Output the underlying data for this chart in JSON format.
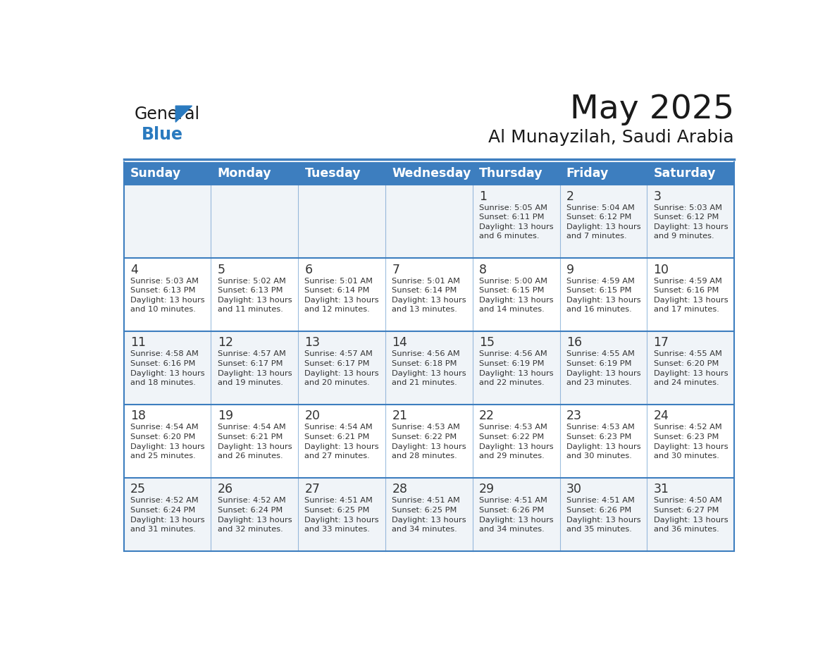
{
  "title": "May 2025",
  "subtitle": "Al Munayzilah, Saudi Arabia",
  "days_of_week": [
    "Sunday",
    "Monday",
    "Tuesday",
    "Wednesday",
    "Thursday",
    "Friday",
    "Saturday"
  ],
  "header_bg": "#3d7ebf",
  "header_text": "#ffffff",
  "row_bg_even": "#f0f4f8",
  "row_bg_odd": "#ffffff",
  "border_color": "#3d7ebf",
  "day_number_color": "#333333",
  "cell_text_color": "#333333",
  "logo_general_color": "#1a1a1a",
  "logo_blue_color": "#2a7abf",
  "calendar_data": [
    [
      {
        "day": null,
        "info": null
      },
      {
        "day": null,
        "info": null
      },
      {
        "day": null,
        "info": null
      },
      {
        "day": null,
        "info": null
      },
      {
        "day": 1,
        "info": "Sunrise: 5:05 AM\nSunset: 6:11 PM\nDaylight: 13 hours\nand 6 minutes."
      },
      {
        "day": 2,
        "info": "Sunrise: 5:04 AM\nSunset: 6:12 PM\nDaylight: 13 hours\nand 7 minutes."
      },
      {
        "day": 3,
        "info": "Sunrise: 5:03 AM\nSunset: 6:12 PM\nDaylight: 13 hours\nand 9 minutes."
      }
    ],
    [
      {
        "day": 4,
        "info": "Sunrise: 5:03 AM\nSunset: 6:13 PM\nDaylight: 13 hours\nand 10 minutes."
      },
      {
        "day": 5,
        "info": "Sunrise: 5:02 AM\nSunset: 6:13 PM\nDaylight: 13 hours\nand 11 minutes."
      },
      {
        "day": 6,
        "info": "Sunrise: 5:01 AM\nSunset: 6:14 PM\nDaylight: 13 hours\nand 12 minutes."
      },
      {
        "day": 7,
        "info": "Sunrise: 5:01 AM\nSunset: 6:14 PM\nDaylight: 13 hours\nand 13 minutes."
      },
      {
        "day": 8,
        "info": "Sunrise: 5:00 AM\nSunset: 6:15 PM\nDaylight: 13 hours\nand 14 minutes."
      },
      {
        "day": 9,
        "info": "Sunrise: 4:59 AM\nSunset: 6:15 PM\nDaylight: 13 hours\nand 16 minutes."
      },
      {
        "day": 10,
        "info": "Sunrise: 4:59 AM\nSunset: 6:16 PM\nDaylight: 13 hours\nand 17 minutes."
      }
    ],
    [
      {
        "day": 11,
        "info": "Sunrise: 4:58 AM\nSunset: 6:16 PM\nDaylight: 13 hours\nand 18 minutes."
      },
      {
        "day": 12,
        "info": "Sunrise: 4:57 AM\nSunset: 6:17 PM\nDaylight: 13 hours\nand 19 minutes."
      },
      {
        "day": 13,
        "info": "Sunrise: 4:57 AM\nSunset: 6:17 PM\nDaylight: 13 hours\nand 20 minutes."
      },
      {
        "day": 14,
        "info": "Sunrise: 4:56 AM\nSunset: 6:18 PM\nDaylight: 13 hours\nand 21 minutes."
      },
      {
        "day": 15,
        "info": "Sunrise: 4:56 AM\nSunset: 6:19 PM\nDaylight: 13 hours\nand 22 minutes."
      },
      {
        "day": 16,
        "info": "Sunrise: 4:55 AM\nSunset: 6:19 PM\nDaylight: 13 hours\nand 23 minutes."
      },
      {
        "day": 17,
        "info": "Sunrise: 4:55 AM\nSunset: 6:20 PM\nDaylight: 13 hours\nand 24 minutes."
      }
    ],
    [
      {
        "day": 18,
        "info": "Sunrise: 4:54 AM\nSunset: 6:20 PM\nDaylight: 13 hours\nand 25 minutes."
      },
      {
        "day": 19,
        "info": "Sunrise: 4:54 AM\nSunset: 6:21 PM\nDaylight: 13 hours\nand 26 minutes."
      },
      {
        "day": 20,
        "info": "Sunrise: 4:54 AM\nSunset: 6:21 PM\nDaylight: 13 hours\nand 27 minutes."
      },
      {
        "day": 21,
        "info": "Sunrise: 4:53 AM\nSunset: 6:22 PM\nDaylight: 13 hours\nand 28 minutes."
      },
      {
        "day": 22,
        "info": "Sunrise: 4:53 AM\nSunset: 6:22 PM\nDaylight: 13 hours\nand 29 minutes."
      },
      {
        "day": 23,
        "info": "Sunrise: 4:53 AM\nSunset: 6:23 PM\nDaylight: 13 hours\nand 30 minutes."
      },
      {
        "day": 24,
        "info": "Sunrise: 4:52 AM\nSunset: 6:23 PM\nDaylight: 13 hours\nand 30 minutes."
      }
    ],
    [
      {
        "day": 25,
        "info": "Sunrise: 4:52 AM\nSunset: 6:24 PM\nDaylight: 13 hours\nand 31 minutes."
      },
      {
        "day": 26,
        "info": "Sunrise: 4:52 AM\nSunset: 6:24 PM\nDaylight: 13 hours\nand 32 minutes."
      },
      {
        "day": 27,
        "info": "Sunrise: 4:51 AM\nSunset: 6:25 PM\nDaylight: 13 hours\nand 33 minutes."
      },
      {
        "day": 28,
        "info": "Sunrise: 4:51 AM\nSunset: 6:25 PM\nDaylight: 13 hours\nand 34 minutes."
      },
      {
        "day": 29,
        "info": "Sunrise: 4:51 AM\nSunset: 6:26 PM\nDaylight: 13 hours\nand 34 minutes."
      },
      {
        "day": 30,
        "info": "Sunrise: 4:51 AM\nSunset: 6:26 PM\nDaylight: 13 hours\nand 35 minutes."
      },
      {
        "day": 31,
        "info": "Sunrise: 4:50 AM\nSunset: 6:27 PM\nDaylight: 13 hours\nand 36 minutes."
      }
    ]
  ]
}
